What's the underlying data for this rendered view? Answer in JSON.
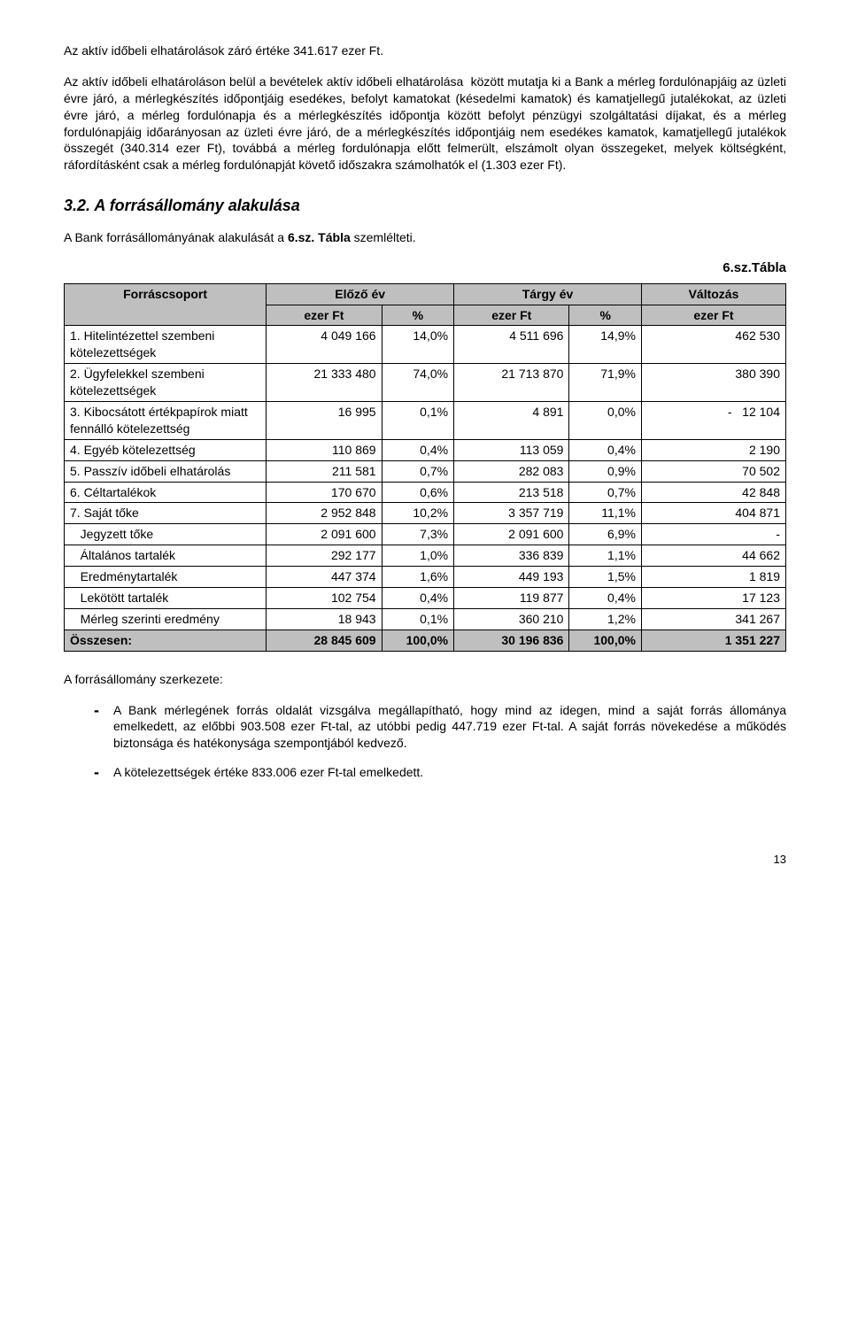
{
  "p1": "Az aktív időbeli elhatárolások záró értéke 341.617 ezer Ft.",
  "p2": "Az aktív időbeli elhatároláson belül a bevételek aktív időbeli elhatárolása  között mutatja ki a Bank a mérleg fordulónapjáig az üzleti évre járó, a mérlegkészítés időpontjáig esedékes, befolyt kamatokat (késedelmi kamatok) és kamatjellegű jutalékokat, az üzleti évre járó, a mérleg fordulónapja és a mérlegkészítés időpontja között befolyt pénzügyi szolgáltatási díjakat, és a mérleg fordulónapjáig időarányosan az üzleti évre járó, de a mérlegkészítés időpontjáig nem esedékes kamatok, kamatjellegű jutalékok összegét (340.314 ezer Ft), továbbá a mérleg fordulónapja előtt felmerült, elszámolt olyan összegeket, melyek költségként, ráfordításként csak a mérleg fordulónapját követő időszakra számolhatók el (1.303 ezer Ft).",
  "h3": "3.2. A forrásállomány alakulása",
  "p3_pre": "A Bank forrásállományának alakulását a ",
  "p3_bold": "6.sz. Tábla",
  "p3_post": " szemlélteti.",
  "table_label": "6.sz.Tábla",
  "thead": {
    "c0": "Forráscsoport",
    "c1a": "Előző év",
    "c1b": "ezer Ft",
    "c1c": "%",
    "c2a": "Tárgy év",
    "c2b": "ezer Ft",
    "c2c": "%",
    "c3a": "Változás",
    "c3b": "ezer Ft"
  },
  "rows": [
    {
      "label": "1. Hitelintézettel szembeni kötelezettségek",
      "prev_ft": "4 049 166",
      "prev_pct": "14,0%",
      "cur_ft": "4 511 696",
      "cur_pct": "14,9%",
      "chg": "462 530"
    },
    {
      "label": "2. Ügyfelekkel szembeni kötelezettségek",
      "prev_ft": "21 333 480",
      "prev_pct": "74,0%",
      "cur_ft": "21 713 870",
      "cur_pct": "71,9%",
      "chg": "380 390"
    },
    {
      "label": "3. Kibocsátott értékpapírok miatt fennálló kötelezettség",
      "prev_ft": "16 995",
      "prev_pct": "0,1%",
      "cur_ft": "4 891",
      "cur_pct": "0,0%",
      "chg": "-   12 104"
    },
    {
      "label": "4. Egyéb kötelezettség",
      "prev_ft": "110 869",
      "prev_pct": "0,4%",
      "cur_ft": "113 059",
      "cur_pct": "0,4%",
      "chg": "2 190"
    },
    {
      "label": "5. Passzív időbeli elhatárolás",
      "prev_ft": "211 581",
      "prev_pct": "0,7%",
      "cur_ft": "282 083",
      "cur_pct": "0,9%",
      "chg": "70 502"
    },
    {
      "label": "6. Céltartalékok",
      "prev_ft": "170 670",
      "prev_pct": "0,6%",
      "cur_ft": "213 518",
      "cur_pct": "0,7%",
      "chg": "42 848"
    },
    {
      "label": "7. Saját tőke",
      "prev_ft": "2 952 848",
      "prev_pct": "10,2%",
      "cur_ft": "3 357 719",
      "cur_pct": "11,1%",
      "chg": "404 871"
    },
    {
      "label": "   Jegyzett tőke",
      "prev_ft": "2 091 600",
      "prev_pct": "7,3%",
      "cur_ft": "2 091 600",
      "cur_pct": "6,9%",
      "chg": "-"
    },
    {
      "label": "   Általános tartalék",
      "prev_ft": "292 177",
      "prev_pct": "1,0%",
      "cur_ft": "336 839",
      "cur_pct": "1,1%",
      "chg": "44 662"
    },
    {
      "label": "   Eredménytartalék",
      "prev_ft": "447 374",
      "prev_pct": "1,6%",
      "cur_ft": "449 193",
      "cur_pct": "1,5%",
      "chg": "1 819"
    },
    {
      "label": "   Lekötött tartalék",
      "prev_ft": "102 754",
      "prev_pct": "0,4%",
      "cur_ft": "119 877",
      "cur_pct": "0,4%",
      "chg": "17 123"
    },
    {
      "label": "   Mérleg szerinti eredmény",
      "prev_ft": "18 943",
      "prev_pct": "0,1%",
      "cur_ft": "360 210",
      "cur_pct": "1,2%",
      "chg": "341 267"
    }
  ],
  "totals": {
    "label": "Összesen:",
    "prev_ft": "28 845 609",
    "prev_pct": "100,0%",
    "cur_ft": "30 196 836",
    "cur_pct": "100,0%",
    "chg": "1 351 227"
  },
  "p4": "A forrásállomány szerkezete:",
  "bullets": [
    "A Bank mérlegének forrás oldalát vizsgálva megállapítható, hogy mind az idegen, mind a saját forrás állománya emelkedett, az előbbi 903.508 ezer Ft-tal, az utóbbi pedig 447.719 ezer Ft-tal. A saját forrás növekedése a működés biztonsága és hatékonysága szempontjából kedvező.",
    "A kötelezettségek értéke 833.006 ezer Ft-tal emelkedett."
  ],
  "page": "13"
}
